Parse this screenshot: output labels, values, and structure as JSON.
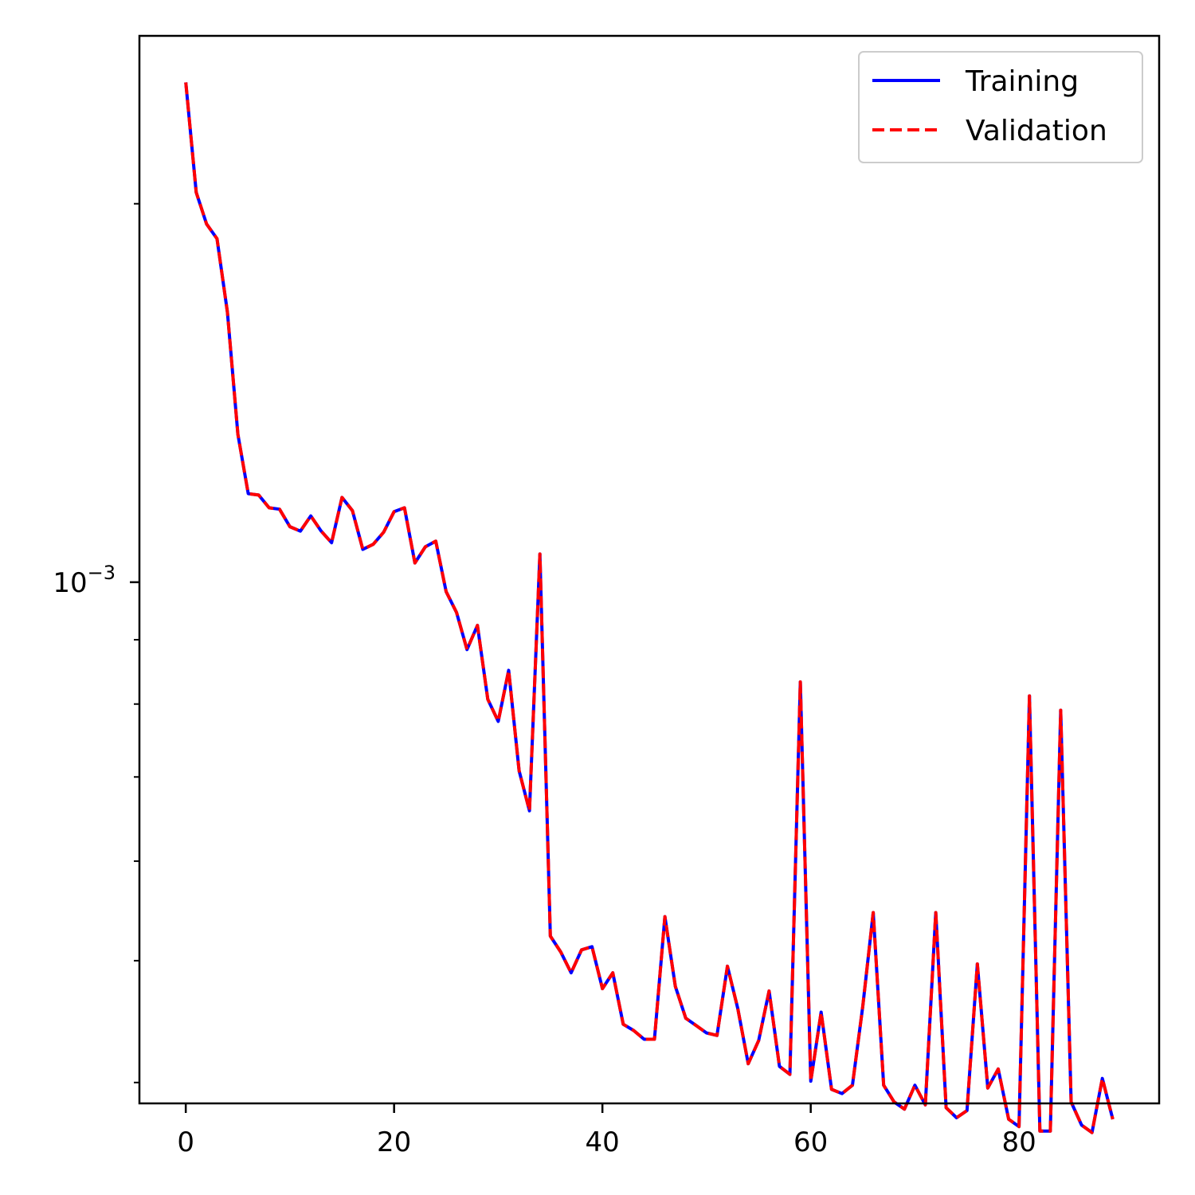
{
  "chart_data": {
    "type": "line",
    "title": "",
    "xlabel": "",
    "ylabel": "",
    "y_scale": "log",
    "xlim": [
      -4.45,
      93.45
    ],
    "ylim": [
      0.000385,
      0.00272
    ],
    "grid": false,
    "legend_placement": "top-right",
    "x_ticks": [
      0,
      20,
      40,
      60,
      80
    ],
    "x_tick_labels": [
      "0",
      "20",
      "40",
      "60",
      "80"
    ],
    "y_major_ticks": [
      0.001
    ],
    "y_tick_label": {
      "base": "10",
      "exponent": "−3"
    },
    "y_minor_ticks": [
      0.0004,
      0.0005,
      0.0006,
      0.0007,
      0.0008,
      0.0009,
      0.002
    ],
    "x": [
      0,
      1,
      2,
      3,
      4,
      5,
      6,
      7,
      8,
      9,
      10,
      11,
      12,
      13,
      14,
      15,
      16,
      17,
      18,
      19,
      20,
      21,
      22,
      23,
      24,
      25,
      26,
      27,
      28,
      29,
      30,
      31,
      32,
      33,
      34,
      35,
      36,
      37,
      38,
      39,
      40,
      41,
      42,
      43,
      44,
      45,
      46,
      47,
      48,
      49,
      50,
      51,
      52,
      53,
      54,
      55,
      56,
      57,
      58,
      59,
      60,
      61,
      62,
      63,
      64,
      65,
      66,
      67,
      68,
      69,
      70,
      71,
      72,
      73,
      74,
      75,
      76,
      77,
      78,
      79,
      80,
      81,
      82,
      83,
      84,
      85,
      86,
      87,
      88,
      89
    ],
    "series": [
      {
        "name": "Training",
        "color": "#0000ff",
        "style": "solid",
        "values": [
          0.002498,
          0.002042,
          0.001927,
          0.001876,
          0.001639,
          0.001311,
          0.001176,
          0.001173,
          0.001146,
          0.001143,
          0.001107,
          0.001098,
          0.001129,
          0.001098,
          0.001075,
          0.001168,
          0.00114,
          0.001062,
          0.001072,
          0.001096,
          0.001138,
          0.001146,
          0.001036,
          0.001067,
          0.001078,
          0.000983,
          0.000946,
          0.000884,
          0.000924,
          0.000807,
          0.000775,
          0.000851,
          0.000708,
          0.000658,
          0.001053,
          0.000523,
          0.000508,
          0.000489,
          0.00051,
          0.000513,
          0.000475,
          0.000489,
          0.000445,
          0.00044,
          0.000433,
          0.000433,
          0.000542,
          0.000477,
          0.00045,
          0.000444,
          0.000438,
          0.000436,
          0.000495,
          0.000458,
          0.000414,
          0.000432,
          0.000473,
          0.000412,
          0.000406,
          0.000833,
          0.000401,
          0.000455,
          0.000395,
          0.000392,
          0.000398,
          0.00046,
          0.000546,
          0.000398,
          0.000386,
          0.000381,
          0.000398,
          0.000384,
          0.000546,
          0.000382,
          0.000375,
          0.00038,
          0.000497,
          0.000396,
          0.00041,
          0.000374,
          0.000369,
          0.000812,
          0.000366,
          0.000366,
          0.000791,
          0.000386,
          0.00037,
          0.000365,
          0.000403,
          0.000374
        ]
      },
      {
        "name": "Validation",
        "color": "#ff0000",
        "style": "dashed",
        "values": [
          0.002498,
          0.002042,
          0.001927,
          0.001876,
          0.001639,
          0.001311,
          0.001176,
          0.001173,
          0.001146,
          0.001143,
          0.001107,
          0.001098,
          0.001129,
          0.001098,
          0.001075,
          0.001168,
          0.00114,
          0.001062,
          0.001072,
          0.001096,
          0.001138,
          0.001146,
          0.001036,
          0.001067,
          0.001078,
          0.000983,
          0.000946,
          0.000884,
          0.000924,
          0.000807,
          0.000775,
          0.000851,
          0.000708,
          0.000658,
          0.001053,
          0.000523,
          0.000508,
          0.000489,
          0.00051,
          0.000513,
          0.000475,
          0.000489,
          0.000445,
          0.00044,
          0.000433,
          0.000433,
          0.000542,
          0.000477,
          0.00045,
          0.000444,
          0.000438,
          0.000436,
          0.000495,
          0.000458,
          0.000414,
          0.000432,
          0.000473,
          0.000412,
          0.000406,
          0.000833,
          0.000401,
          0.000455,
          0.000395,
          0.000392,
          0.000398,
          0.00046,
          0.000546,
          0.000398,
          0.000386,
          0.000381,
          0.000398,
          0.000384,
          0.000546,
          0.000382,
          0.000375,
          0.00038,
          0.000497,
          0.000396,
          0.00041,
          0.000374,
          0.000369,
          0.000812,
          0.000366,
          0.000366,
          0.000791,
          0.000386,
          0.00037,
          0.000365,
          0.000403,
          0.000374
        ]
      }
    ]
  }
}
